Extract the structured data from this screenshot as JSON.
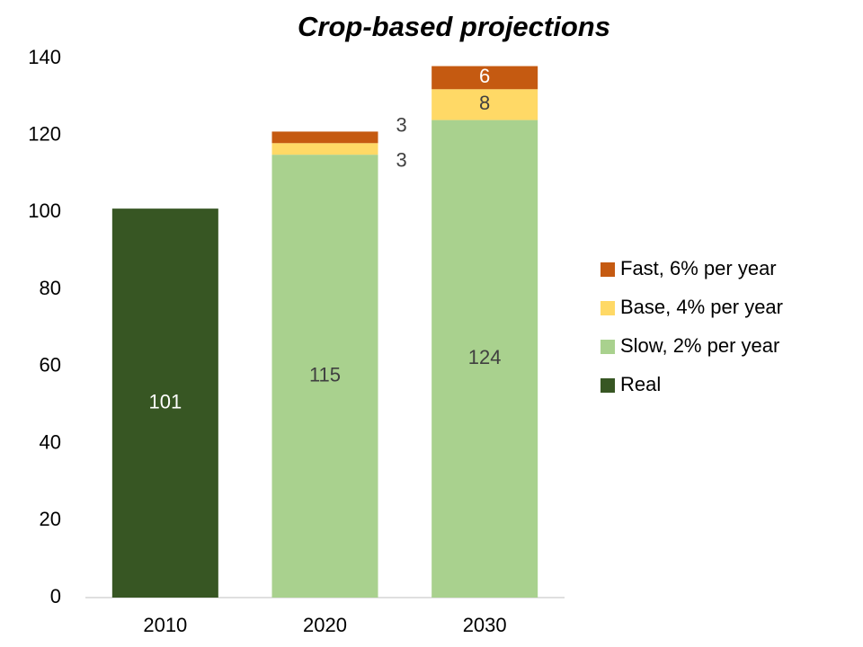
{
  "chart_data": {
    "type": "stacked_bar",
    "title": "Crop-based projections",
    "categories": [
      "2010",
      "2020",
      "2030"
    ],
    "series": [
      {
        "name": "Real",
        "color": "#375623",
        "values": [
          101,
          null,
          null
        ]
      },
      {
        "name": "Slow, 2% per year",
        "color": "#a9d18e",
        "values": [
          null,
          115,
          124
        ]
      },
      {
        "name": "Base, 4% per year",
        "color": "#ffd966",
        "values": [
          null,
          3,
          8
        ]
      },
      {
        "name": "Fast, 6% per year",
        "color": "#c55a11",
        "values": [
          null,
          3,
          6
        ]
      }
    ],
    "ylim": [
      0,
      140
    ],
    "yticks": [
      0,
      20,
      40,
      60,
      80,
      100,
      120,
      140
    ],
    "grid": false,
    "legend": "right"
  }
}
